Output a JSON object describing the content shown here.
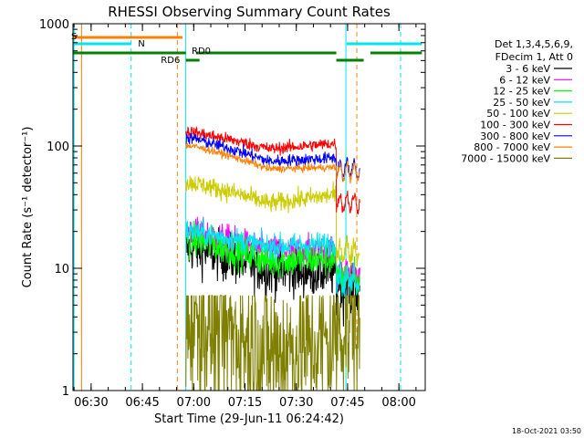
{
  "chart_data": {
    "type": "line",
    "title": "RHESSI Observing Summary Count Rates",
    "xlabel": "Start Time (29-Jun-11 06:24:42)",
    "ylabel": "Count Rate (s⁻¹ detector⁻¹)",
    "y_scale": "log",
    "ylim": [
      1,
      1000
    ],
    "xlim_minutes": [
      0,
      103
    ],
    "x_ticks": [
      {
        "label": "06:30",
        "t": 5.3
      },
      {
        "label": "06:45",
        "t": 20.3
      },
      {
        "label": "07:00",
        "t": 35.3
      },
      {
        "label": "07:15",
        "t": 50.3
      },
      {
        "label": "07:30",
        "t": 65.3
      },
      {
        "label": "07:45",
        "t": 80.3
      },
      {
        "label": "08:00",
        "t": 95.3
      }
    ],
    "y_ticks": [
      {
        "label": "1",
        "v": 1
      },
      {
        "label": "10",
        "v": 10
      },
      {
        "label": "100",
        "v": 100
      },
      {
        "label": "1000",
        "v": 1000
      }
    ],
    "grid": false,
    "legend_position": "top-right",
    "legend_header": [
      "Det 1,3,4,5,6,9,",
      "FDecim 1, Att 0"
    ],
    "flags": [
      {
        "label": "S",
        "color": "#ff8000",
        "segments": [
          [
            0,
            32
          ]
        ]
      },
      {
        "label": "N",
        "color": "#00e5ee",
        "segments": [
          [
            0,
            17
          ],
          [
            80,
            102
          ]
        ]
      },
      {
        "label": "RD0",
        "color": "#008000",
        "segments": [
          [
            0,
            33
          ],
          [
            36,
            77
          ],
          [
            87,
            102
          ]
        ]
      },
      {
        "label": "RD6",
        "color": "#008000",
        "segments": [
          [
            33,
            37
          ],
          [
            77,
            85
          ]
        ]
      }
    ],
    "vertical_markers": [
      {
        "t": 0.3,
        "color": "#00e5ee",
        "style": "solid"
      },
      {
        "t": 2.5,
        "color": "#ff8000",
        "style": "solid"
      },
      {
        "t": 17.0,
        "color": "#00e5ee",
        "style": "dashed"
      },
      {
        "t": 30.5,
        "color": "#ff8000",
        "style": "dashed"
      },
      {
        "t": 33.0,
        "color": "#00e5ee",
        "style": "solid"
      },
      {
        "t": 79.8,
        "color": "#00e5ee",
        "style": "solid"
      },
      {
        "t": 83.0,
        "color": "#ff8000",
        "style": "dashed"
      },
      {
        "t": 95.8,
        "color": "#00e5ee",
        "style": "dashed"
      }
    ],
    "data_window_minutes": [
      33,
      84
    ],
    "series": [
      {
        "name": "3 - 6 keV",
        "color": "#000000",
        "start": 14.5,
        "min": 9.5,
        "end_main": 9.2,
        "final": 7.0,
        "noise": 0.1
      },
      {
        "name": "6 - 12 keV",
        "color": "#ff00ff",
        "start": 20,
        "min": 14,
        "end_main": 14,
        "final": 9.0,
        "noise": 0.06
      },
      {
        "name": "12 - 25 keV",
        "color": "#00ff00",
        "start": 17,
        "min": 11.5,
        "end_main": 12,
        "final": 8.5,
        "noise": 0.07
      },
      {
        "name": "25 - 50 keV",
        "color": "#00e5ee",
        "start": 20,
        "min": 15,
        "end_main": 16,
        "final": 8.0,
        "noise": 0.05
      },
      {
        "name": "50 - 100 keV",
        "color": "#cccc00",
        "start": 50,
        "min": 34,
        "end_main": 40,
        "final": 14,
        "noise": 0.04
      },
      {
        "name": "100 - 300 keV",
        "color": "#ff0000",
        "start": 130,
        "min": 95,
        "end_main": 105,
        "final": 35,
        "noise": 0.025
      },
      {
        "name": "300 - 800 keV",
        "color": "#0000ff",
        "start": 115,
        "min": 75,
        "end_main": 80,
        "final": 65,
        "noise": 0.025
      },
      {
        "name": "800 - 7000 keV",
        "color": "#ff8000",
        "start": 100,
        "min": 65,
        "end_main": 67,
        "final": 62,
        "noise": 0.015
      },
      {
        "name": "7000 - 15000 keV",
        "color": "#808000",
        "start": 4,
        "min": 2.0,
        "end_main": 2.5,
        "final": 3.5,
        "noise": 0.35
      }
    ]
  },
  "footer": {
    "timestamp": "18-Oct-2021 03:50"
  }
}
